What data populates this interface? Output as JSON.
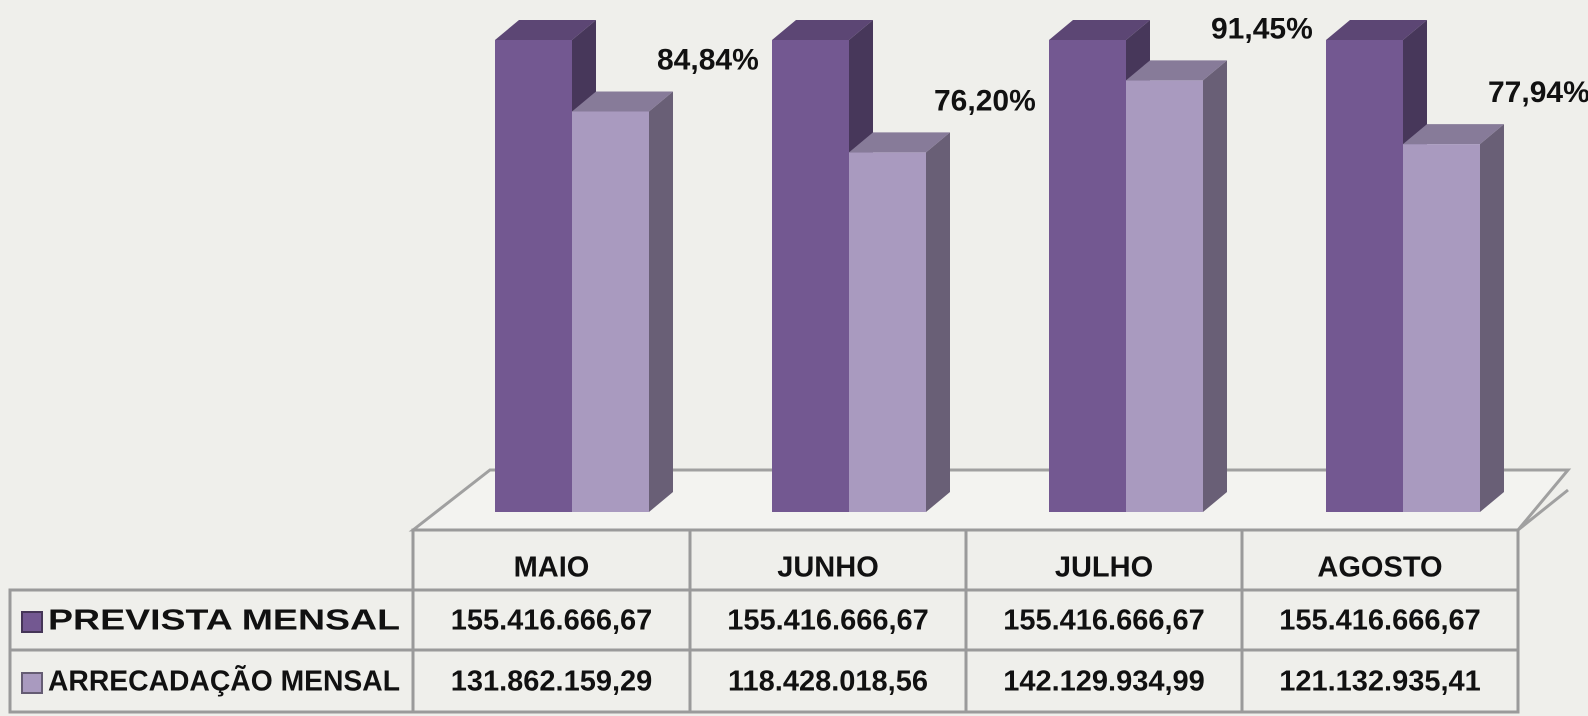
{
  "chart_data": {
    "type": "bar3d",
    "categories": [
      "MAIO",
      "JUNHO",
      "JULHO",
      "AGOSTO"
    ],
    "series": [
      {
        "name": "PREVISTA MENSAL",
        "color": "#735891",
        "values": [
          155416666.67,
          155416666.67,
          155416666.67,
          155416666.67
        ],
        "value_labels": [
          "155.416.666,67",
          "155.416.666,67",
          "155.416.666,67",
          "155.416.666,67"
        ]
      },
      {
        "name": "ARRECADAÇÃO MENSAL",
        "color": "#a99abf",
        "values": [
          131862159.29,
          118428018.56,
          142129934.99,
          121132935.41
        ],
        "value_labels": [
          "131.862.159,29",
          "118.428.018,56",
          "142.129.934,99",
          "121.132.935,41"
        ]
      }
    ],
    "annotations": [
      "84,84%",
      "76,20%",
      "91,45%",
      "77,94%"
    ]
  }
}
